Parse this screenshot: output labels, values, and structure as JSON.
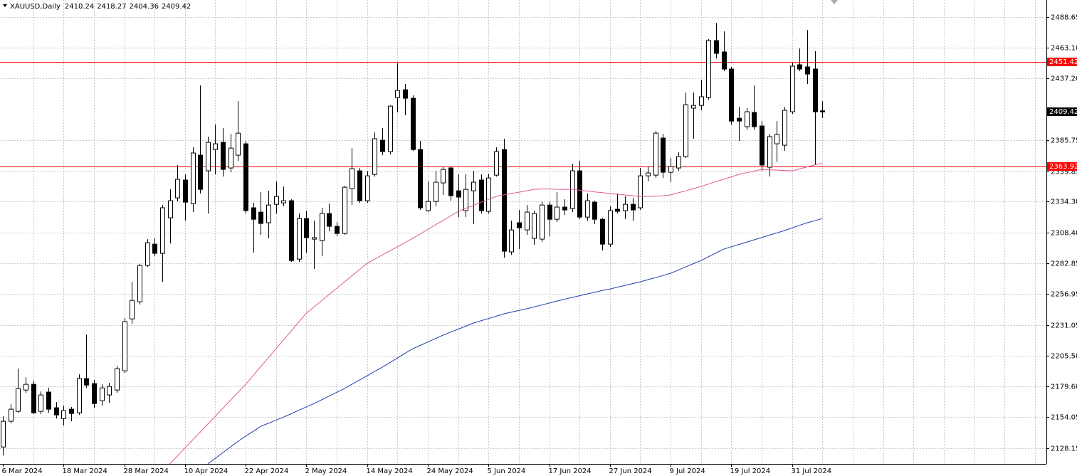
{
  "chart_data": {
    "type": "candlestick",
    "title": "XAUUSD,Daily",
    "categories": [
      "6 Mar 2024",
      null,
      null,
      null,
      null,
      null,
      null,
      null,
      "18 Mar 2024",
      null,
      null,
      null,
      null,
      null,
      null,
      null,
      "28 Mar 2024",
      null,
      null,
      null,
      null,
      null,
      null,
      null,
      "10 Apr 2024",
      null,
      null,
      null,
      null,
      null,
      null,
      null,
      "22 Apr 2024",
      null,
      null,
      null,
      null,
      null,
      null,
      null,
      "2 May 2024",
      null,
      null,
      null,
      null,
      null,
      null,
      null,
      "14 May 2024",
      null,
      null,
      null,
      null,
      null,
      null,
      null,
      "24 May 2024",
      null,
      null,
      null,
      null,
      null,
      null,
      null,
      "5 Jun 2024",
      null,
      null,
      null,
      null,
      null,
      null,
      null,
      "17 Jun 2024",
      null,
      null,
      null,
      null,
      null,
      null,
      null,
      "27 Jun 2024",
      null,
      null,
      null,
      null,
      null,
      null,
      null,
      "9 Jul 2024",
      null,
      null,
      null,
      null,
      null,
      null,
      null,
      "19 Jul 2024",
      null,
      null,
      null,
      null,
      null,
      null,
      null,
      "31 Jul 2024",
      null,
      null,
      null,
      null
    ],
    "open": [
      2129.2,
      2150.7,
      2159.0,
      2176.8,
      2181.6,
      2159.0,
      2175.1,
      2162.0,
      2153.0,
      2160.8,
      2157.8,
      2186.4,
      2182.2,
      2167.9,
      2172.7,
      2176.8,
      2192.9,
      2236.3,
      2250.6,
      2281.0,
      2298.8,
      2291.1,
      2320.8,
      2337.5,
      2352.4,
      2332.7,
      2373.2,
      2360.1,
      2377.9,
      2383.9,
      2362.5,
      2373.2,
      2382.7,
      2329.2,
      2325.6,
      2316.7,
      2332.1,
      2333.3,
      2335.1,
      2286.3,
      2320.2,
      2303.0,
      2301.8,
      2324.4,
      2313.7,
      2307.7,
      2345.2,
      2360.1,
      2335.1,
      2357.1,
      2385.7,
      2376.2,
      2421.4,
      2427.9,
      2420.8,
      2377.9,
      2326.8,
      2334.5,
      2350.0,
      2362.5,
      2343.4,
      2326.8,
      2343.4,
      2352.4,
      2326.2,
      2356.5,
      2377.9,
      2292.3,
      2316.7,
      2310.7,
      2303.6,
      2303.0,
      2331.5,
      2319.6,
      2329.8,
      2328.6,
      2360.1,
      2321.4,
      2333.9,
      2319.6,
      2298.8,
      2328.0,
      2326.8,
      2332.1,
      2329.2,
      2355.9,
      2356.5,
      2387.5,
      2358.9,
      2362.5,
      2372.0,
      2412.5,
      2414.8,
      2421.4,
      2469.0,
      2459.5,
      2445.2,
      2404.1,
      2397.0,
      2408.9,
      2397.6,
      2363.1,
      2382.7,
      2381.5,
      2409.5,
      2448.8,
      2447.0,
      2445.2,
      2410.24
    ],
    "high": [
      2154.8,
      2164.9,
      2194.7,
      2187.5,
      2184.6,
      2175.6,
      2178.6,
      2166.7,
      2163.7,
      2162.6,
      2189.9,
      2223.2,
      2185.2,
      2181.6,
      2182.8,
      2197.1,
      2236.9,
      2267.3,
      2282.2,
      2303.0,
      2303.6,
      2331.5,
      2344.6,
      2364.9,
      2357.1,
      2379.7,
      2431.5,
      2388.7,
      2398.8,
      2395.8,
      2391.0,
      2418.4,
      2385.1,
      2333.3,
      2342.2,
      2343.4,
      2351.2,
      2347.0,
      2336.3,
      2324.4,
      2326.8,
      2318.4,
      2329.2,
      2332.7,
      2317.3,
      2347.6,
      2379.1,
      2362.5,
      2360.1,
      2392.2,
      2395.8,
      2414.8,
      2449.9,
      2432.7,
      2423.2,
      2385.1,
      2351.2,
      2360.1,
      2363.1,
      2363.7,
      2357.1,
      2357.1,
      2360.1,
      2357.1,
      2357.7,
      2379.7,
      2386.9,
      2318.4,
      2327.4,
      2331.5,
      2326.8,
      2334.5,
      2334.5,
      2342.2,
      2336.3,
      2366.0,
      2368.4,
      2341.1,
      2335.1,
      2320.8,
      2330.3,
      2341.1,
      2338.7,
      2337.5,
      2362.5,
      2363.7,
      2393.4,
      2391.0,
      2370.8,
      2375.6,
      2425.5,
      2425.5,
      2436.3,
      2470.2,
      2483.9,
      2476.7,
      2447.0,
      2413.6,
      2412.5,
      2431.5,
      2401.7,
      2391.0,
      2401.7,
      2413.6,
      2450.5,
      2462.4,
      2477.9,
      2460.1,
      2418.27
    ],
    "low": [
      2122.1,
      2148.9,
      2157.8,
      2174.5,
      2156.6,
      2156.6,
      2157.8,
      2153.0,
      2147.1,
      2150.7,
      2156.0,
      2178.6,
      2162.0,
      2163.7,
      2166.1,
      2174.5,
      2191.1,
      2232.2,
      2248.2,
      2279.8,
      2288.7,
      2267.3,
      2299.4,
      2334.5,
      2318.4,
      2325.6,
      2341.1,
      2324.4,
      2357.1,
      2355.3,
      2358.9,
      2368.4,
      2324.4,
      2291.7,
      2306.5,
      2303.6,
      2324.4,
      2330.3,
      2283.9,
      2283.9,
      2291.7,
      2278.0,
      2288.7,
      2309.5,
      2305.4,
      2306.5,
      2331.5,
      2333.3,
      2333.3,
      2355.3,
      2373.2,
      2373.8,
      2408.9,
      2406.5,
      2376.8,
      2327.4,
      2325.6,
      2330.3,
      2339.9,
      2335.1,
      2321.4,
      2321.4,
      2315.5,
      2324.4,
      2324.4,
      2355.3,
      2287.5,
      2289.9,
      2294.6,
      2306.5,
      2298.2,
      2300.6,
      2305.4,
      2317.3,
      2323.2,
      2325.6,
      2319.6,
      2318.4,
      2315.5,
      2293.5,
      2296.4,
      2324.4,
      2319.6,
      2318.4,
      2327.4,
      2351.2,
      2354.1,
      2354.1,
      2350.6,
      2360.1,
      2370.8,
      2386.9,
      2410.7,
      2419.6,
      2454.1,
      2443.4,
      2398.8,
      2385.1,
      2394.6,
      2394.6,
      2360.1,
      2355.3,
      2367.8,
      2376.8,
      2407.7,
      2443.4,
      2432.7,
      2364.9,
      2404.36
    ],
    "close": [
      2150.7,
      2160.8,
      2178.0,
      2181.6,
      2157.8,
      2172.7,
      2160.8,
      2156.0,
      2159.6,
      2157.2,
      2186.4,
      2181.0,
      2165.5,
      2178.6,
      2179.8,
      2194.7,
      2234.0,
      2251.8,
      2281.0,
      2300.0,
      2291.1,
      2329.2,
      2335.1,
      2353.0,
      2333.9,
      2375.0,
      2344.6,
      2383.9,
      2382.7,
      2361.3,
      2379.1,
      2391.6,
      2326.8,
      2319.6,
      2316.1,
      2331.5,
      2338.7,
      2335.1,
      2285.1,
      2320.2,
      2304.2,
      2304.2,
      2324.4,
      2313.7,
      2307.7,
      2346.4,
      2361.9,
      2335.1,
      2355.9,
      2386.9,
      2376.2,
      2414.2,
      2427.3,
      2420.8,
      2377.9,
      2329.2,
      2334.5,
      2350.6,
      2361.3,
      2339.3,
      2338.1,
      2344.6,
      2350.6,
      2326.8,
      2354.1,
      2376.2,
      2292.9,
      2310.7,
      2312.5,
      2325.6,
      2324.4,
      2331.5,
      2319.6,
      2329.8,
      2327.4,
      2360.1,
      2321.4,
      2335.1,
      2319.6,
      2298.8,
      2326.8,
      2326.2,
      2332.1,
      2327.4,
      2355.9,
      2358.3,
      2391.6,
      2358.9,
      2363.7,
      2372.0,
      2415.4,
      2414.8,
      2422.0,
      2469.0,
      2458.3,
      2445.2,
      2401.7,
      2401.7,
      2409.5,
      2397.0,
      2364.9,
      2388.7,
      2390.4,
      2410.7,
      2447.6,
      2445.2,
      2441.0,
      2409.5,
      2409.42
    ],
    "up_color": "#ffffff",
    "down_color": "#000000",
    "lines": [
      {
        "color": "#e0589c",
        "values": [
          null,
          null,
          null,
          null,
          null,
          null,
          null,
          null,
          null,
          null,
          null,
          null,
          null,
          null,
          null,
          null,
          null,
          null,
          null,
          null,
          null,
          null,
          2115.0,
          2121.6,
          2128.3,
          2135.0,
          2141.6,
          2148.3,
          2154.9,
          2161.6,
          2168.3,
          2174.9,
          2181.6,
          2189.0,
          2196.5,
          2203.9,
          2211.3,
          2218.8,
          2226.2,
          2233.7,
          2241.1,
          2246.3,
          2251.5,
          2256.7,
          2261.9,
          2267.1,
          2272.3,
          2277.5,
          2282.7,
          2286.2,
          2289.7,
          2293.2,
          2296.6,
          2300.1,
          2303.6,
          2307.3,
          2311.1,
          2314.9,
          2318.6,
          2322.4,
          2326.2,
          2328.7,
          2331.2,
          2333.7,
          2336.2,
          2338.7,
          2339.9,
          2341.1,
          2342.2,
          2343.4,
          2344.6,
          2344.9,
          2344.9,
          2344.6,
          2344.6,
          2344.6,
          2343.9,
          2343.2,
          2342.5,
          2341.8,
          2341.1,
          2340.5,
          2339.9,
          2339.3,
          2338.7,
          2338.7,
          2339.0,
          2339.3,
          2339.9,
          2341.7,
          2343.4,
          2345.2,
          2347.0,
          2349.0,
          2351.1,
          2353.1,
          2355.1,
          2357.1,
          2358.5,
          2359.9,
          2361.3,
          2361.0,
          2360.7,
          2360.4,
          2360.1,
          2361.7,
          2363.4,
          2365.0,
          2366.6
        ]
      },
      {
        "color": "#1f3fae",
        "values": [
          null,
          null,
          null,
          null,
          null,
          null,
          null,
          null,
          null,
          null,
          null,
          null,
          null,
          null,
          null,
          null,
          null,
          null,
          null,
          null,
          null,
          null,
          null,
          null,
          null,
          null,
          null,
          2115.0,
          2119.7,
          2124.5,
          2129.2,
          2134.0,
          2138.2,
          2142.3,
          2146.5,
          2149.0,
          2151.7,
          2154.2,
          2157.0,
          2159.9,
          2162.7,
          2165.5,
          2168.6,
          2171.8,
          2174.9,
          2178.0,
          2181.6,
          2185.2,
          2188.7,
          2192.3,
          2195.9,
          2199.7,
          2203.6,
          2207.5,
          2211.3,
          2214.1,
          2217.0,
          2219.8,
          2222.7,
          2225.2,
          2227.7,
          2230.2,
          2232.8,
          2234.7,
          2236.6,
          2238.5,
          2240.5,
          2241.9,
          2243.3,
          2244.7,
          2246.3,
          2247.9,
          2249.5,
          2251.2,
          2252.7,
          2254.2,
          2255.7,
          2257.2,
          2258.5,
          2260.0,
          2261.3,
          2262.8,
          2264.3,
          2265.8,
          2267.3,
          2269.1,
          2270.8,
          2272.6,
          2274.4,
          2277.1,
          2279.8,
          2282.5,
          2285.1,
          2288.3,
          2291.5,
          2294.6,
          2296.6,
          2298.5,
          2300.4,
          2302.4,
          2304.3,
          2306.3,
          2308.2,
          2310.1,
          2312.3,
          2314.5,
          2316.7,
          2318.4,
          2320.2
        ]
      }
    ],
    "levels": [
      {
        "value": 2451.42,
        "color": "#ff0000"
      },
      {
        "value": 2363.92,
        "color": "#ff0000"
      }
    ],
    "ylim": [
      2115.05,
      2502.93
    ],
    "yticks": [
      2128.15,
      2154.05,
      {
        "value": 2179.6,
        "label": "2179.60"
      },
      {
        "value": 2205.5,
        "label": "2205.50"
      },
      2231.05,
      2256.95,
      2282.85,
      {
        "value": 2308.4,
        "label": "2308.40"
      },
      {
        "value": 2334.3,
        "label": "2334.30"
      },
      2359.85,
      2385.75,
      {
        "value": 2437.2,
        "label": "2437.20"
      },
      {
        "value": 2463.1,
        "label": "2463.10"
      },
      2488.65
    ],
    "grid": true
  }
}
